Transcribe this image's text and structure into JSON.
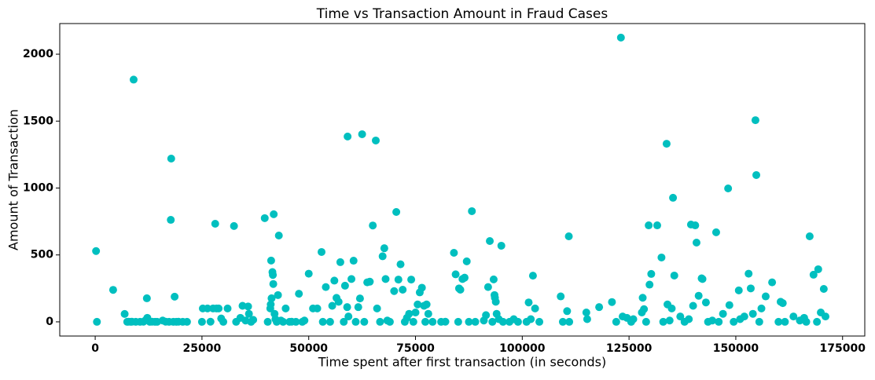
{
  "chart_data": {
    "type": "scatter",
    "title": "Time vs Transaction Amount in Fraud Cases",
    "x_label": "Time spent after first transaction (in seconds)",
    "y_label": "Amount of Transaction",
    "color": "#00bfbf",
    "xlim": [
      -8300,
      180200
    ],
    "ylim": [
      -106,
      2229
    ],
    "xticks": [
      0,
      25000,
      50000,
      75000,
      100000,
      125000,
      150000,
      175000
    ],
    "yticks": [
      0,
      500,
      1000,
      1500,
      2000
    ],
    "x": [
      406,
      200,
      4200,
      6900,
      7500,
      7800,
      8300,
      8600,
      9000,
      9500,
      10500,
      11300,
      11800,
      12100,
      12200,
      12800,
      13300,
      14000,
      14500,
      15800,
      16500,
      17300,
      17700,
      17800,
      18300,
      18600,
      19000,
      19500,
      20500,
      21500,
      25000,
      25200,
      26300,
      27000,
      27600,
      28100,
      28400,
      28900,
      29500,
      30000,
      31000,
      32500,
      33000,
      34000,
      34500,
      35200,
      35800,
      36000,
      36500,
      37000,
      39700,
      40400,
      41000,
      41100,
      41200,
      41300,
      41500,
      41600,
      41700,
      41800,
      42000,
      42200,
      42500,
      43000,
      42800,
      43500,
      44000,
      44600,
      45500,
      46000,
      47000,
      47700,
      48500,
      49000,
      50000,
      51000,
      52000,
      53000,
      53300,
      54000,
      55000,
      55500,
      56000,
      56500,
      57000,
      57400,
      58200,
      58500,
      59100,
      59000,
      59300,
      60000,
      60500,
      61000,
      61600,
      62000,
      62500,
      63000,
      63700,
      64300,
      65000,
      65700,
      66000,
      66700,
      67300,
      67700,
      68000,
      68400,
      69000,
      70000,
      70500,
      71000,
      71500,
      72000,
      72500,
      73000,
      73500,
      74000,
      74500,
      75000,
      75500,
      76000,
      76500,
      77000,
      77300,
      77600,
      78000,
      79000,
      81000,
      82000,
      84000,
      84400,
      85000,
      85200,
      85500,
      86000,
      86500,
      87000,
      87500,
      88200,
      89000,
      91000,
      91500,
      92000,
      92400,
      93000,
      93300,
      93500,
      93600,
      93800,
      94000,
      94500,
      95100,
      95500,
      97000,
      98000,
      99000,
      101000,
      101500,
      102000,
      102500,
      103000,
      104000,
      109000,
      109500,
      110500,
      110900,
      111000,
      115000,
      115200,
      118000,
      121000,
      122000,
      123100,
      123500,
      124500,
      125500,
      126000,
      128000,
      128200,
      128500,
      129000,
      129600,
      129800,
      130200,
      131600,
      132600,
      133000,
      133800,
      134000,
      134500,
      135000,
      135300,
      135600,
      137000,
      138000,
      139000,
      139500,
      140000,
      140500,
      140800,
      141300,
      142000,
      142200,
      143000,
      143500,
      144500,
      145400,
      146000,
      147000,
      148200,
      148500,
      149500,
      150700,
      151000,
      152000,
      153000,
      153500,
      154000,
      154600,
      154800,
      155500,
      156000,
      157000,
      158500,
      160000,
      160500,
      161000,
      161500,
      163500,
      165000,
      166000,
      166500,
      167300,
      168200,
      169000,
      169300,
      169900,
      170600,
      171000
    ],
    "values": [
      0,
      529,
      239,
      59,
      0,
      1,
      0,
      1,
      1810,
      0,
      0,
      1,
      12,
      176,
      30,
      0,
      1,
      0,
      0,
      10,
      1,
      0,
      762,
      1220,
      0,
      188,
      0,
      1,
      0,
      0,
      0,
      100,
      100,
      1,
      100,
      733,
      100,
      100,
      25,
      0,
      100,
      716,
      0,
      30,
      120,
      10,
      115,
      60,
      0,
      15,
      775,
      0,
      100,
      130,
      458,
      176,
      372,
      350,
      283,
      804,
      60,
      20,
      0,
      645,
      200,
      10,
      0,
      100,
      0,
      1,
      0,
      210,
      0,
      10,
      360,
      100,
      100,
      522,
      0,
      260,
      0,
      120,
      308,
      179,
      150,
      446,
      0,
      270,
      1385,
      110,
      40,
      320,
      457,
      0,
      110,
      175,
      1402,
      0,
      295,
      300,
      720,
      1355,
      100,
      0,
      490,
      550,
      320,
      10,
      0,
      230,
      821,
      316,
      430,
      240,
      0,
      30,
      60,
      316,
      0,
      70,
      130,
      220,
      255,
      120,
      0,
      130,
      60,
      0,
      0,
      1,
      516,
      355,
      0,
      250,
      240,
      320,
      330,
      452,
      0,
      827,
      0,
      10,
      50,
      260,
      604,
      0,
      317,
      200,
      180,
      150,
      60,
      20,
      569,
      0,
      0,
      20,
      0,
      0,
      145,
      20,
      345,
      100,
      0,
      190,
      0,
      80,
      639,
      0,
      70,
      20,
      110,
      148,
      0,
      2124,
      40,
      30,
      0,
      20,
      70,
      180,
      95,
      0,
      721,
      278,
      358,
      721,
      481,
      0,
      1331,
      130,
      10,
      100,
      927,
      346,
      40,
      0,
      20,
      727,
      120,
      721,
      592,
      195,
      325,
      320,
      145,
      0,
      10,
      669,
      0,
      60,
      997,
      125,
      0,
      235,
      20,
      40,
      360,
      250,
      60,
      1507,
      1097,
      0,
      100,
      190,
      295,
      0,
      150,
      140,
      0,
      40,
      10,
      30,
      0,
      639,
      352,
      0,
      393,
      70,
      246,
      40
    ]
  }
}
